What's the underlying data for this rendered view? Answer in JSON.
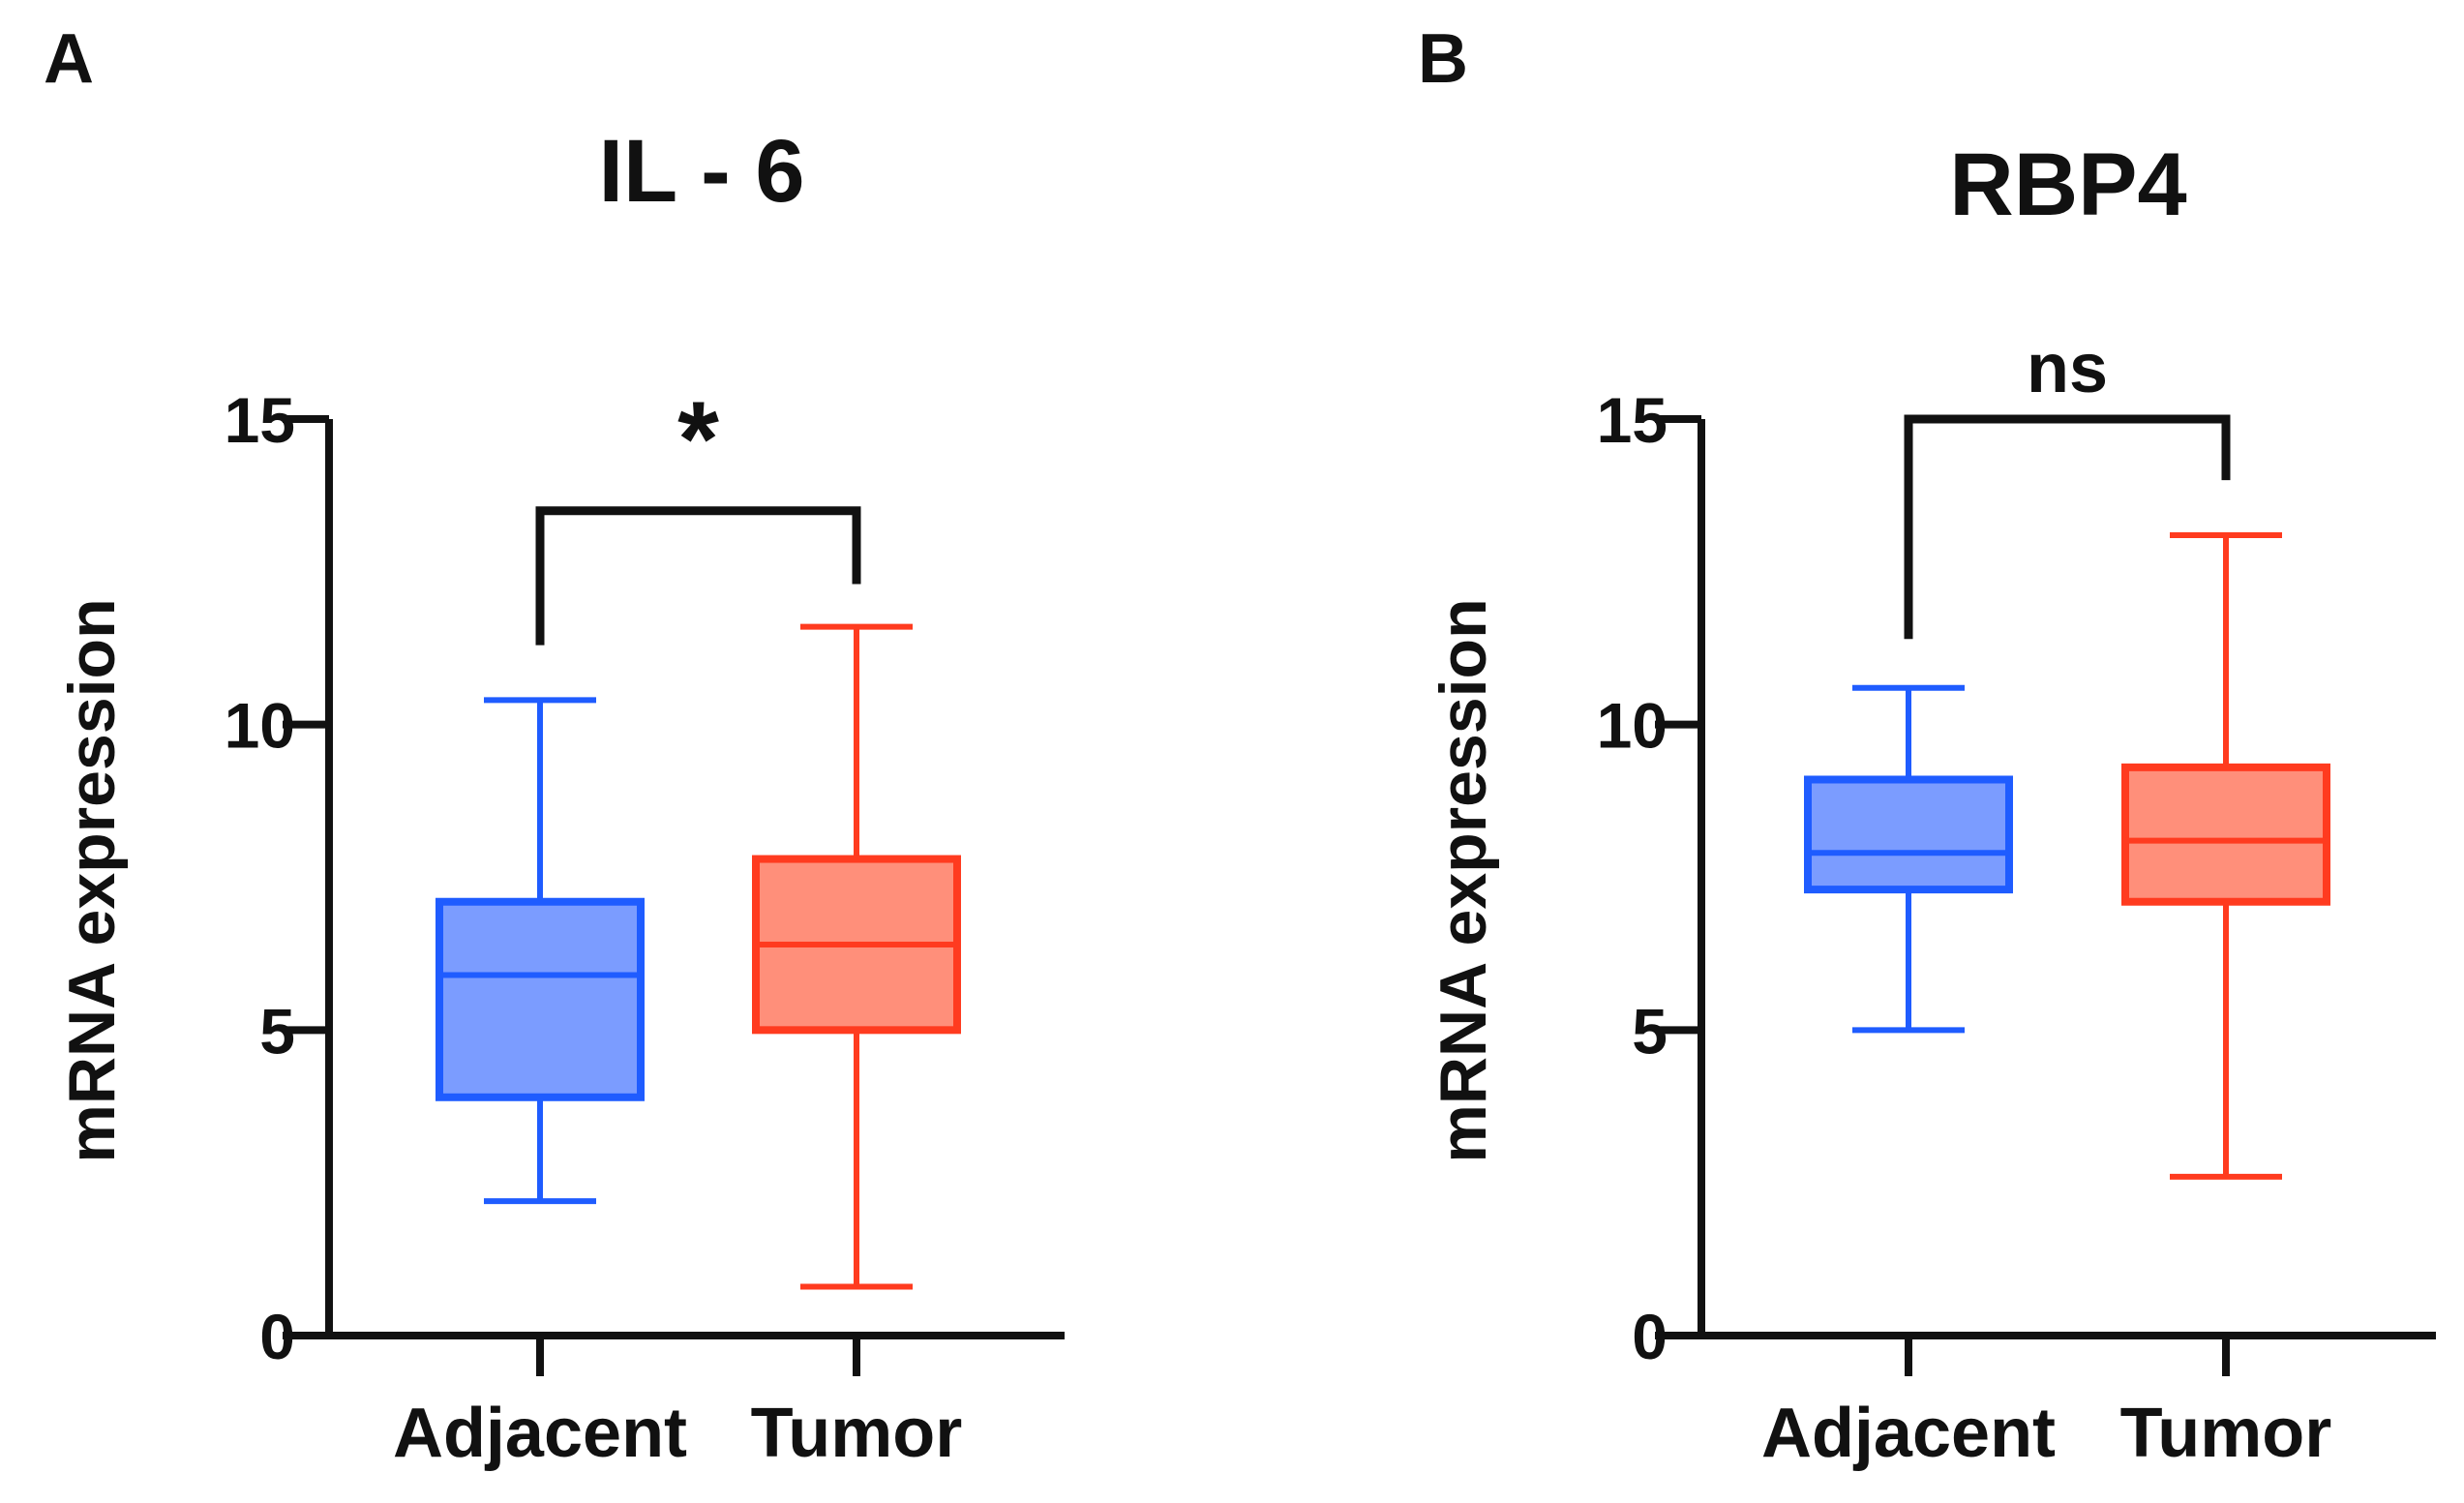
{
  "colors": {
    "adjacent_stroke": "#1f5cff",
    "adjacent_fill": "#7b9cff",
    "tumor_stroke": "#ff3b1f",
    "tumor_fill": "#ff8f7a",
    "axis": "#111111"
  },
  "chart_data": [
    {
      "panel": "A",
      "type": "boxplot",
      "title": "IL - 6",
      "ylabel": "mRNA expression",
      "xlabel": "",
      "ylim": [
        0,
        15
      ],
      "yticks": [
        "0",
        "5",
        "10",
        "15"
      ],
      "categories": [
        "Adjacent",
        "Tumor"
      ],
      "series": [
        {
          "name": "Adjacent",
          "min": 2.2,
          "q1": 3.9,
          "median": 5.9,
          "q3": 7.1,
          "max": 10.4
        },
        {
          "name": "Tumor",
          "min": 0.8,
          "q1": 5.0,
          "median": 6.4,
          "q3": 7.8,
          "max": 11.6
        }
      ],
      "significance": {
        "label": "*",
        "left_end": 11.3,
        "right_end": 12.3,
        "top": 13.5
      }
    },
    {
      "panel": "B",
      "type": "boxplot",
      "title": "RBP4",
      "ylabel": "mRNA expression",
      "xlabel": "",
      "ylim": [
        0,
        15
      ],
      "yticks": [
        "0",
        "5",
        "10",
        "15"
      ],
      "categories": [
        "Adjacent",
        "Tumor"
      ],
      "series": [
        {
          "name": "Adjacent",
          "min": 5.0,
          "q1": 7.3,
          "median": 7.9,
          "q3": 9.1,
          "max": 10.6
        },
        {
          "name": "Tumor",
          "min": 2.6,
          "q1": 7.1,
          "median": 8.1,
          "q3": 9.3,
          "max": 13.1
        }
      ],
      "significance": {
        "label": "ns",
        "left_end": 11.4,
        "right_end": 14.0,
        "top": 15.0
      }
    }
  ]
}
